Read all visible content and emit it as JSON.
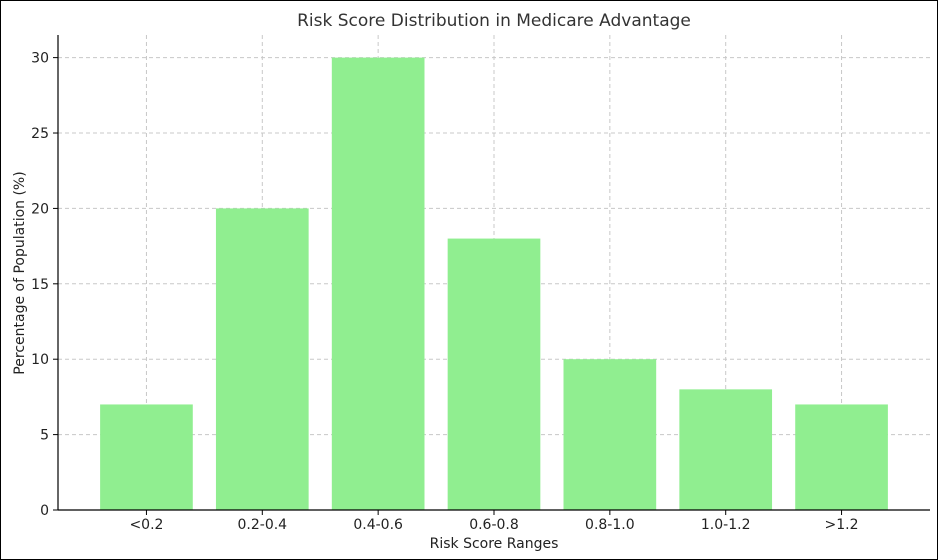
{
  "chart_data": {
    "type": "bar",
    "title": "Risk Score Distribution in Medicare Advantage",
    "xlabel": "Risk Score Ranges",
    "ylabel": "Percentage of Population (%)",
    "categories": [
      "<0.2",
      "0.2-0.4",
      "0.4-0.6",
      "0.6-0.8",
      "0.8-1.0",
      "1.0-1.2",
      ">1.2"
    ],
    "values": [
      7,
      20,
      30,
      18,
      10,
      8,
      7
    ],
    "ylim": [
      0,
      31.5
    ],
    "yticks": [
      0,
      5,
      10,
      15,
      20,
      25,
      30
    ],
    "grid": true,
    "colors": {
      "bar": "#90ee90",
      "axis": "#000000",
      "grid": "#c8c8c8",
      "text": "#222222"
    }
  }
}
